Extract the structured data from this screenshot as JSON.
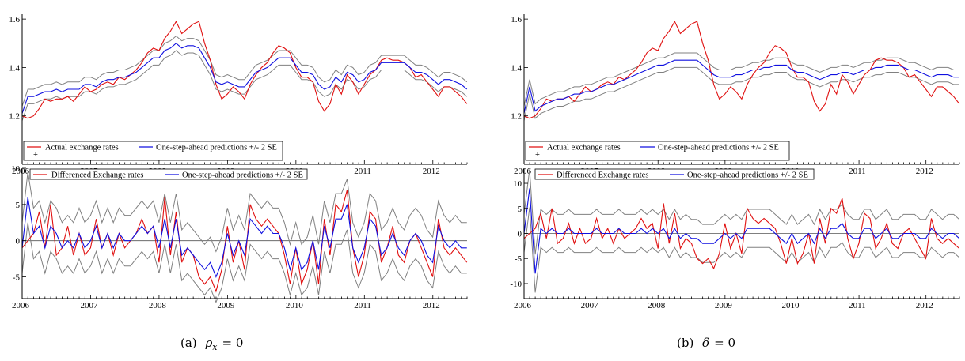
{
  "captions": [
    {
      "label": "(a)",
      "symbol": "ρ",
      "sub": "x",
      "rhs": "= 0"
    },
    {
      "label": "(b)",
      "symbol": "δ",
      "sub": "",
      "rhs": "= 0"
    }
  ],
  "colors": {
    "actual": "#e01010",
    "prediction": "#1010e0",
    "band": "#808080",
    "axis": "#000000"
  },
  "chart_data": [
    {
      "type": "line",
      "panel": "a-top",
      "x_start": 2006.0,
      "x_step": 0.0833,
      "xlim": [
        2006,
        2012.5
      ],
      "ylim": [
        1.0,
        1.62
      ],
      "xticks": [
        "2006",
        "2007",
        "2008",
        "2009",
        "2010",
        "2011",
        "2012"
      ],
      "yticks": [
        "1.2",
        "1.4",
        "1.6"
      ],
      "legend": [
        "Actual exchange rates",
        "One-step-ahead predictions +/- 2 SE"
      ],
      "legend_marker": "+",
      "series": [
        {
          "name": "Actual exchange rates",
          "values": [
            1.2,
            1.19,
            1.2,
            1.23,
            1.27,
            1.26,
            1.27,
            1.27,
            1.28,
            1.26,
            1.29,
            1.32,
            1.3,
            1.31,
            1.33,
            1.34,
            1.33,
            1.36,
            1.35,
            1.37,
            1.39,
            1.42,
            1.46,
            1.48,
            1.47,
            1.52,
            1.55,
            1.59,
            1.54,
            1.56,
            1.58,
            1.59,
            1.5,
            1.43,
            1.33,
            1.27,
            1.29,
            1.32,
            1.3,
            1.27,
            1.33,
            1.37,
            1.4,
            1.42,
            1.46,
            1.49,
            1.48,
            1.46,
            1.4,
            1.36,
            1.36,
            1.34,
            1.26,
            1.22,
            1.25,
            1.33,
            1.29,
            1.37,
            1.34,
            1.29,
            1.33,
            1.37,
            1.39,
            1.43,
            1.44,
            1.43,
            1.43,
            1.42,
            1.4,
            1.36,
            1.37,
            1.34,
            1.31,
            1.28,
            1.32,
            1.32,
            1.3,
            1.28,
            1.25
          ]
        },
        {
          "name": "One-step-ahead predictions +/- 2 SE",
          "values": [
            1.21,
            1.28,
            1.28,
            1.29,
            1.3,
            1.3,
            1.31,
            1.3,
            1.31,
            1.31,
            1.31,
            1.33,
            1.33,
            1.32,
            1.34,
            1.35,
            1.35,
            1.36,
            1.36,
            1.37,
            1.38,
            1.4,
            1.42,
            1.44,
            1.44,
            1.47,
            1.48,
            1.5,
            1.48,
            1.49,
            1.49,
            1.48,
            1.44,
            1.4,
            1.34,
            1.33,
            1.34,
            1.33,
            1.32,
            1.32,
            1.35,
            1.38,
            1.39,
            1.4,
            1.42,
            1.44,
            1.44,
            1.44,
            1.41,
            1.38,
            1.38,
            1.37,
            1.33,
            1.31,
            1.32,
            1.36,
            1.34,
            1.38,
            1.37,
            1.34,
            1.35,
            1.38,
            1.39,
            1.42,
            1.42,
            1.42,
            1.42,
            1.42,
            1.4,
            1.38,
            1.38,
            1.37,
            1.35,
            1.33,
            1.35,
            1.35,
            1.34,
            1.33,
            1.31
          ]
        }
      ],
      "band_width": 0.03
    },
    {
      "type": "line",
      "panel": "a-bottom",
      "x_start": 2006.0,
      "x_step": 0.0833,
      "xlim": [
        2006,
        2012.5
      ],
      "ylim": [
        -8,
        10
      ],
      "xticks": [
        "2006",
        "2007",
        "2008",
        "2009",
        "2010",
        "2011",
        "2012"
      ],
      "yticks": [
        "-5",
        "0",
        "5",
        "10"
      ],
      "legend": [
        "Differenced Exchange rates",
        "One-step-ahead predictions +/- 2 SE"
      ],
      "series": [
        {
          "name": "Differenced Exchange rates",
          "values": [
            -1,
            0,
            1,
            4,
            -1,
            5,
            -2,
            -1,
            2,
            -2,
            1,
            -2,
            -1,
            3,
            -1,
            1,
            -2,
            1,
            -1,
            0,
            1,
            3,
            1,
            2,
            -3,
            6,
            -2,
            4,
            -3,
            -1,
            -2,
            -5,
            -6,
            -5,
            -7,
            -4,
            2,
            -3,
            0,
            -4,
            5,
            3,
            2,
            3,
            2,
            1,
            -2,
            -6,
            -1,
            -6,
            -4,
            0,
            -6,
            3,
            -2,
            5,
            4,
            7,
            -1,
            -5,
            -2,
            4,
            3,
            -3,
            -1,
            2,
            -2,
            -3,
            0,
            1,
            -1,
            -3,
            -5,
            3,
            -1,
            -2,
            -1,
            -2,
            -3
          ]
        },
        {
          "name": "One-step-ahead predictions +/- 2 SE",
          "values": [
            -1,
            6,
            1,
            2,
            -1,
            2,
            1,
            -1,
            0,
            -1,
            1,
            -1,
            0,
            2,
            -1,
            1,
            -1,
            1,
            0,
            0,
            1,
            2,
            1,
            2,
            -1,
            3,
            -1,
            3,
            -2,
            -1,
            -2,
            -3,
            -4,
            -3,
            -5,
            -3,
            1,
            -2,
            0,
            -2,
            3,
            2,
            1,
            2,
            1,
            1,
            -1,
            -4,
            -1,
            -4,
            -3,
            0,
            -4,
            2,
            -1,
            3,
            3,
            5,
            -1,
            -3,
            -1,
            3,
            2,
            -2,
            -1,
            1,
            -1,
            -2,
            0,
            1,
            0,
            -2,
            -3,
            2,
            0,
            -1,
            0,
            -1,
            -1
          ]
        }
      ],
      "band_width": 3.5
    },
    {
      "type": "line",
      "panel": "b-top",
      "x_start": 2006.0,
      "x_step": 0.0833,
      "xlim": [
        2006,
        2012.5
      ],
      "ylim": [
        1.0,
        1.62
      ],
      "xticks": [
        "2006",
        "2007",
        "2008",
        "2009",
        "2010",
        "2011",
        "2012"
      ],
      "yticks": [
        "1.2",
        "1.4",
        "1.6"
      ],
      "legend": [
        "Actual exchange rates",
        "One-step-ahead predictions +/- 2 SE"
      ],
      "legend_marker": "+",
      "series": [
        {
          "name": "Actual exchange rates",
          "values": [
            1.2,
            1.19,
            1.2,
            1.23,
            1.27,
            1.26,
            1.27,
            1.27,
            1.28,
            1.26,
            1.29,
            1.32,
            1.3,
            1.31,
            1.33,
            1.34,
            1.33,
            1.36,
            1.35,
            1.37,
            1.39,
            1.42,
            1.46,
            1.48,
            1.47,
            1.52,
            1.55,
            1.59,
            1.54,
            1.56,
            1.58,
            1.59,
            1.5,
            1.43,
            1.33,
            1.27,
            1.29,
            1.32,
            1.3,
            1.27,
            1.33,
            1.37,
            1.4,
            1.42,
            1.46,
            1.49,
            1.48,
            1.46,
            1.4,
            1.36,
            1.36,
            1.34,
            1.26,
            1.22,
            1.25,
            1.33,
            1.29,
            1.37,
            1.34,
            1.29,
            1.33,
            1.37,
            1.39,
            1.43,
            1.44,
            1.43,
            1.43,
            1.42,
            1.4,
            1.36,
            1.37,
            1.34,
            1.31,
            1.28,
            1.32,
            1.32,
            1.3,
            1.28,
            1.25
          ]
        },
        {
          "name": "One-step-ahead predictions +/- 2 SE",
          "values": [
            1.21,
            1.32,
            1.22,
            1.24,
            1.25,
            1.26,
            1.27,
            1.27,
            1.28,
            1.29,
            1.29,
            1.3,
            1.3,
            1.31,
            1.32,
            1.33,
            1.33,
            1.34,
            1.35,
            1.36,
            1.37,
            1.38,
            1.39,
            1.4,
            1.41,
            1.41,
            1.42,
            1.43,
            1.43,
            1.43,
            1.43,
            1.43,
            1.41,
            1.39,
            1.37,
            1.36,
            1.36,
            1.36,
            1.37,
            1.37,
            1.38,
            1.39,
            1.39,
            1.4,
            1.4,
            1.41,
            1.41,
            1.41,
            1.39,
            1.38,
            1.38,
            1.37,
            1.36,
            1.35,
            1.36,
            1.37,
            1.37,
            1.38,
            1.38,
            1.37,
            1.38,
            1.39,
            1.39,
            1.4,
            1.4,
            1.41,
            1.41,
            1.41,
            1.4,
            1.39,
            1.39,
            1.38,
            1.37,
            1.36,
            1.37,
            1.37,
            1.37,
            1.36,
            1.36
          ]
        }
      ],
      "band_width": 0.03
    },
    {
      "type": "line",
      "panel": "b-bottom",
      "x_start": 2006.0,
      "x_step": 0.0833,
      "xlim": [
        2006,
        2012.5
      ],
      "ylim": [
        -13,
        13
      ],
      "xticks": [
        "2006",
        "2007",
        "2008",
        "2009",
        "2010",
        "2011",
        "2012"
      ],
      "yticks": [
        "-10",
        "-5",
        "0",
        "5",
        "10"
      ],
      "legend": [
        "Differenced Exchange rates",
        "One-step-ahead predictions +/- 2 SE"
      ],
      "series": [
        {
          "name": "Differenced Exchange rates",
          "values": [
            -1,
            0,
            1,
            4,
            -1,
            5,
            -2,
            -1,
            2,
            -2,
            1,
            -2,
            -1,
            3,
            -1,
            1,
            -2,
            1,
            -1,
            0,
            1,
            3,
            1,
            2,
            -3,
            6,
            -2,
            4,
            -3,
            -1,
            -2,
            -5,
            -6,
            -5,
            -7,
            -4,
            2,
            -3,
            0,
            -4,
            5,
            3,
            2,
            3,
            2,
            1,
            -2,
            -6,
            -1,
            -6,
            -4,
            0,
            -6,
            3,
            -2,
            5,
            4,
            7,
            -1,
            -5,
            -2,
            4,
            3,
            -3,
            -1,
            2,
            -2,
            -3,
            0,
            1,
            -1,
            -3,
            -5,
            3,
            -1,
            -2,
            -1,
            -2,
            -3
          ]
        },
        {
          "name": "One-step-ahead predictions +/- 2 SE",
          "values": [
            0,
            9,
            -8,
            1,
            0,
            1,
            0,
            0,
            1,
            0,
            0,
            0,
            0,
            1,
            0,
            0,
            0,
            1,
            0,
            0,
            0,
            1,
            0,
            1,
            0,
            1,
            -1,
            1,
            -1,
            0,
            -1,
            -1,
            -2,
            -2,
            -2,
            -1,
            0,
            -1,
            0,
            -1,
            1,
            1,
            1,
            1,
            1,
            0,
            -1,
            -2,
            0,
            -2,
            -1,
            0,
            -2,
            1,
            -1,
            1,
            1,
            2,
            0,
            -1,
            -1,
            1,
            1,
            -1,
            0,
            1,
            -1,
            -1,
            0,
            0,
            0,
            -1,
            -1,
            1,
            0,
            -1,
            0,
            0,
            -1
          ]
        }
      ],
      "band_width": 3.8
    }
  ]
}
